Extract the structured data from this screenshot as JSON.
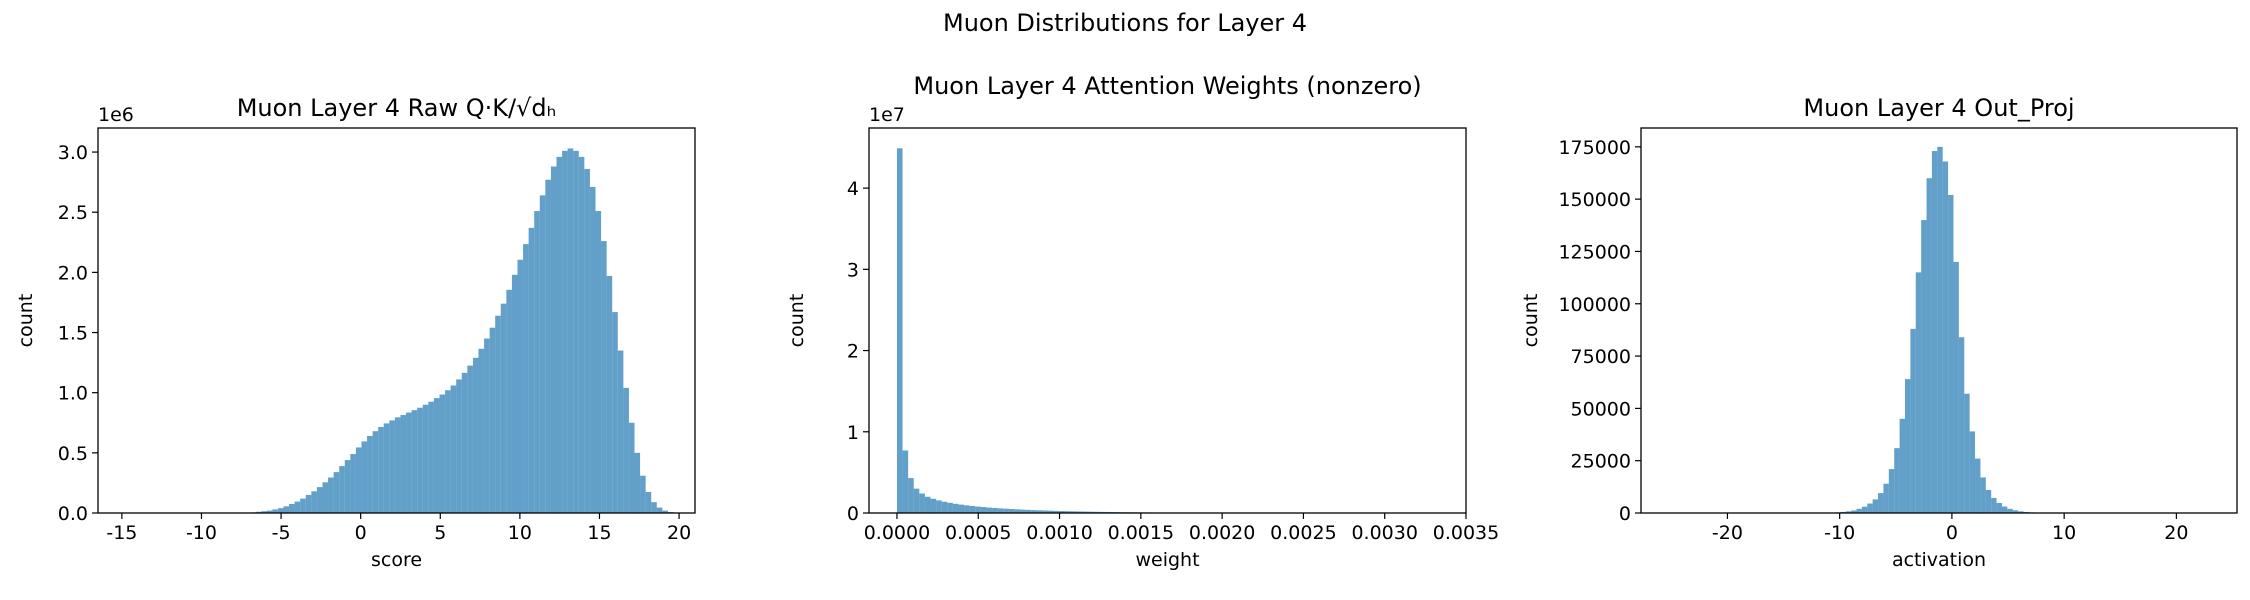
{
  "figure": {
    "suptitle": "Muon Distributions for Layer 4"
  },
  "colors": {
    "bar": "#1f77b4",
    "bar_opacity": 0.7,
    "frame": "#000000"
  },
  "chart_data": [
    {
      "type": "bar",
      "id": "raw-qk",
      "title": "Muon Layer 4 Raw Q·K/√dₕ",
      "xlabel": "score",
      "ylabel": "count",
      "xlim": [
        -16.5,
        21.0
      ],
      "ylim": [
        0,
        3200000.0
      ],
      "xticks": [
        -15,
        -10,
        -5,
        0,
        5,
        10,
        15,
        20
      ],
      "yticks": [
        0,
        0.5,
        1.0,
        1.5,
        2.0,
        2.5,
        3.0
      ],
      "ytick_labels": [
        "0.0",
        "0.5",
        "1.0",
        "1.5",
        "2.0",
        "2.5",
        "3.0"
      ],
      "y_multiplier": 1000000,
      "y_offset_label": "1e6",
      "bin_start": -15.0,
      "bin_width": 0.35,
      "values": [
        0,
        0,
        0,
        0,
        0,
        0,
        0,
        0,
        0,
        0,
        0,
        0,
        0,
        0,
        0,
        0,
        0,
        0,
        0,
        0,
        0,
        0,
        0,
        5000,
        10000,
        15000,
        20000,
        30000,
        40000,
        55000,
        75000,
        95000,
        120000,
        150000,
        180000,
        215000,
        255000,
        295000,
        340000,
        390000,
        440000,
        490000,
        545000,
        595000,
        640000,
        680000,
        715000,
        745000,
        770000,
        795000,
        815000,
        835000,
        855000,
        875000,
        900000,
        925000,
        955000,
        985000,
        1020000,
        1060000,
        1110000,
        1165000,
        1225000,
        1290000,
        1365000,
        1450000,
        1540000,
        1640000,
        1740000,
        1855000,
        1980000,
        2105000,
        2235000,
        2370000,
        2510000,
        2640000,
        2770000,
        2880000,
        2960000,
        3010000,
        3030000,
        3010000,
        2960000,
        2860000,
        2710000,
        2510000,
        2260000,
        1970000,
        1670000,
        1350000,
        1040000,
        750000,
        500000,
        310000,
        175000,
        90000,
        45000,
        20000,
        8000,
        3000,
        1000
      ]
    },
    {
      "type": "bar",
      "id": "attn-weights",
      "title": "Muon Layer 4 Attention Weights (nonzero)",
      "xlabel": "weight",
      "ylabel": "count",
      "xlim": [
        -0.000172,
        0.0035
      ],
      "ylim": [
        0,
        47400000.0
      ],
      "xticks": [
        0,
        0.0005,
        0.001,
        0.0015,
        0.002,
        0.0025,
        0.003,
        0.0035
      ],
      "xtick_labels": [
        "0.0000",
        "0.0005",
        "0.0010",
        "0.0015",
        "0.0020",
        "0.0025",
        "0.0030",
        "0.0035"
      ],
      "yticks": [
        0,
        1,
        2,
        3,
        4
      ],
      "ytick_labels": [
        "0",
        "1",
        "2",
        "3",
        "4"
      ],
      "y_multiplier": 10000000,
      "y_offset_label": "1e7",
      "bin_start": 0,
      "bin_width": 3.44e-05,
      "values": [
        44900000,
        7700000,
        4300000,
        3000000,
        2400000,
        2000000,
        1750000,
        1550000,
        1380000,
        1250000,
        1130000,
        1030000,
        940000,
        860000,
        790000,
        730000,
        670000,
        620000,
        570000,
        530000,
        490000,
        455000,
        420000,
        390000,
        360000,
        335000,
        310000,
        288000,
        266000,
        246000,
        228000,
        211000,
        195000,
        180000,
        166000,
        153000,
        141000,
        130000,
        120000,
        110000,
        101000,
        93000,
        85000,
        78000,
        72000,
        66000,
        60000,
        55000,
        50000,
        46000,
        42000,
        38000,
        35000,
        32000,
        29000,
        26000,
        24000,
        22000,
        20000,
        18000,
        16000,
        15000,
        13500,
        12000,
        11000,
        10000,
        9000,
        8000,
        7200,
        6500,
        5800,
        5200,
        4600,
        4100,
        3600,
        3200,
        2800,
        2500,
        2200,
        1900,
        1700,
        1500,
        1300,
        1100,
        1000,
        900,
        800,
        700,
        600,
        520,
        450,
        380,
        320,
        270,
        220,
        180,
        140,
        110,
        80,
        50
      ]
    },
    {
      "type": "bar",
      "id": "out-proj",
      "title": "Muon Layer 4 Out_Proj",
      "xlabel": "activation",
      "ylabel": "count",
      "xlim": [
        -27.7,
        25.4
      ],
      "ylim": [
        0,
        184000
      ],
      "xticks": [
        -20,
        -10,
        0,
        10,
        20
      ],
      "yticks": [
        0,
        25000,
        50000,
        75000,
        100000,
        125000,
        150000,
        175000
      ],
      "ytick_labels": [
        "0",
        "25000",
        "50000",
        "75000",
        "100000",
        "125000",
        "150000",
        "175000"
      ],
      "y_multiplier": 1,
      "y_offset_label": "",
      "bin_start": -25.3,
      "bin_width": 0.48,
      "values": [
        0,
        0,
        0,
        0,
        0,
        0,
        0,
        0,
        0,
        0,
        0,
        0,
        0,
        0,
        0,
        0,
        0,
        0,
        0,
        0,
        0,
        0,
        0,
        0,
        0,
        0,
        0,
        0,
        0,
        0,
        0,
        300,
        500,
        800,
        1200,
        2000,
        3000,
        4500,
        6500,
        9500,
        14000,
        21000,
        31000,
        45000,
        64000,
        88000,
        115000,
        140000,
        160000,
        173000,
        175000,
        168000,
        152000,
        120000,
        84000,
        57000,
        39000,
        26000,
        17000,
        11000,
        7200,
        4800,
        3100,
        2000,
        1300,
        800,
        500,
        300,
        180,
        100,
        60,
        30,
        0,
        0,
        0,
        0,
        0,
        0,
        0,
        0,
        0,
        0,
        0,
        0,
        0,
        0,
        0,
        0,
        0,
        0,
        0,
        0,
        0,
        0,
        0,
        0,
        0,
        0,
        0,
        0
      ]
    }
  ]
}
